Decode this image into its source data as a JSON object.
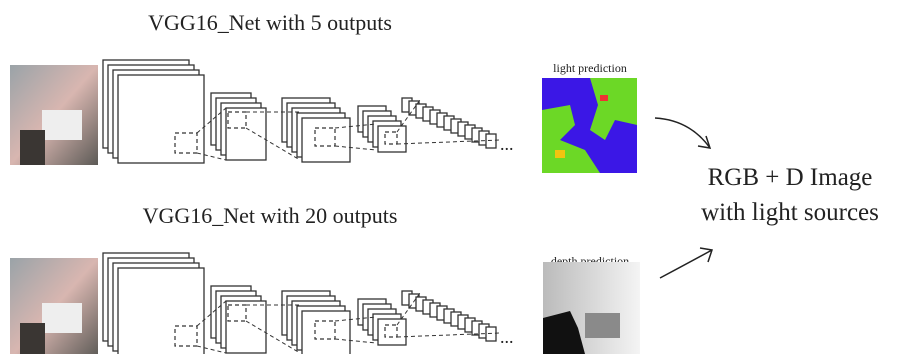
{
  "networks": [
    {
      "title": "VGG16_Net with 5 outputs",
      "ellipsis": "...",
      "output_label": "light prediction"
    },
    {
      "title": "VGG16_Net with 20 outputs",
      "ellipsis": "...",
      "output_label": "depth prediction"
    }
  ],
  "result": {
    "lines": [
      "RGB + D Image",
      "with light sources"
    ]
  }
}
